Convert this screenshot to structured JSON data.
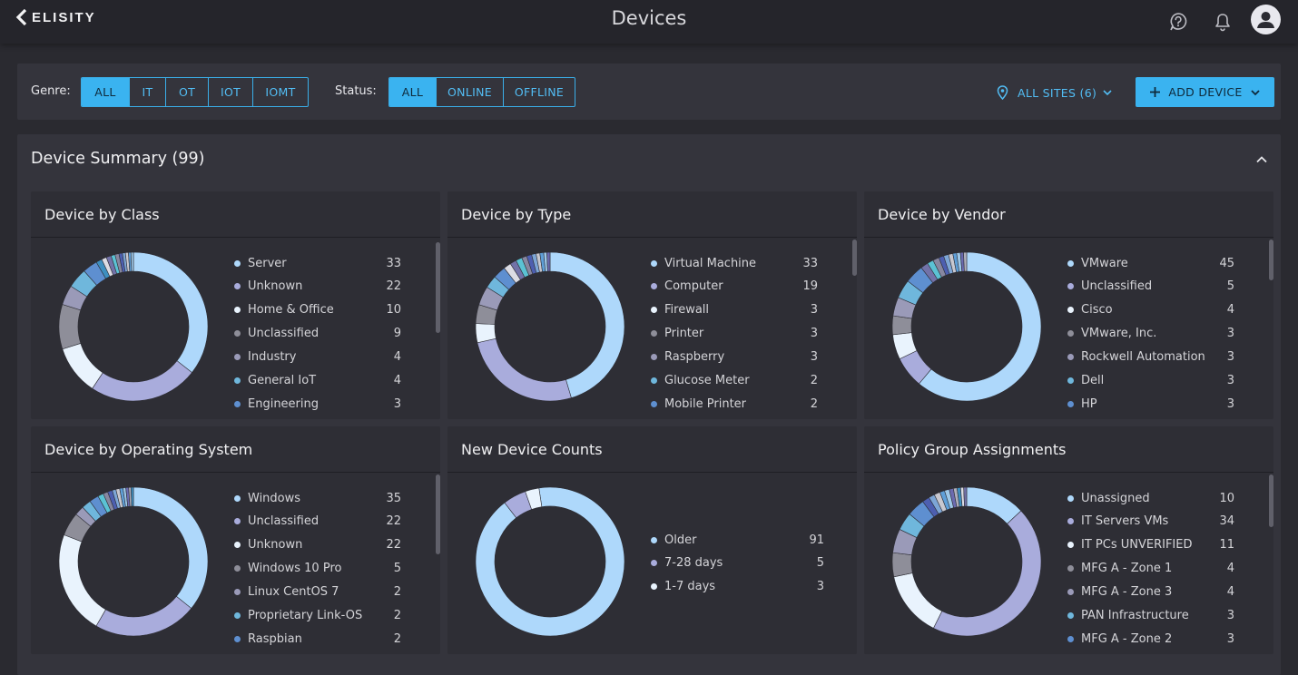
{
  "header": {
    "logo_text": "ELISITY",
    "title": "Devices"
  },
  "filters": {
    "genre_label": "Genre:",
    "genre_options": [
      "ALL",
      "IT",
      "OT",
      "IOT",
      "IOMT"
    ],
    "genre_selected": "ALL",
    "status_label": "Status:",
    "status_options": [
      "ALL",
      "ONLINE",
      "OFFLINE"
    ],
    "status_selected": "ALL",
    "sites_label": "ALL SITES (6)",
    "add_device_label": "ADD DEVICE"
  },
  "summary": {
    "title": "Device Summary (99)"
  },
  "colors": {
    "accent": "#3ab3f0",
    "primary_slice": "#aed8fb",
    "secondary_slice": "#a9acdc"
  },
  "cards": [
    {
      "title": "Device by Class",
      "items": [
        {
          "label": "Server",
          "value": "33",
          "color": "#aed8fb"
        },
        {
          "label": "Unknown",
          "value": "22",
          "color": "#a9acdc"
        },
        {
          "label": "Home & Office",
          "value": "10",
          "color": "#e9f3fd"
        },
        {
          "label": "Unclassified",
          "value": "9",
          "color": "#8e8e99"
        },
        {
          "label": "Industry",
          "value": "4",
          "color": "#9a9ab8"
        },
        {
          "label": "General IoT",
          "value": "4",
          "color": "#6fb7dc"
        },
        {
          "label": "Engineering",
          "value": "3",
          "color": "#5e8fd0"
        }
      ]
    },
    {
      "title": "Device by Type",
      "items": [
        {
          "label": "Virtual Machine",
          "value": "33",
          "color": "#aed8fb"
        },
        {
          "label": "Computer",
          "value": "19",
          "color": "#a9acdc"
        },
        {
          "label": "Firewall",
          "value": "3",
          "color": "#e9f3fd"
        },
        {
          "label": "Printer",
          "value": "3",
          "color": "#8e8e99"
        },
        {
          "label": "Raspberry",
          "value": "3",
          "color": "#9a9ab8"
        },
        {
          "label": "Glucose Meter",
          "value": "2",
          "color": "#6fb7dc"
        },
        {
          "label": "Mobile Printer",
          "value": "2",
          "color": "#5e8fd0"
        }
      ]
    },
    {
      "title": "Device by Vendor",
      "items": [
        {
          "label": "VMware",
          "value": "45",
          "color": "#aed8fb"
        },
        {
          "label": "Unclassified",
          "value": "5",
          "color": "#a9acdc"
        },
        {
          "label": "Cisco",
          "value": "4",
          "color": "#e9f3fd"
        },
        {
          "label": "VMware, Inc.",
          "value": "3",
          "color": "#8e8e99"
        },
        {
          "label": "Rockwell Automation",
          "value": "3",
          "color": "#9a9ab8"
        },
        {
          "label": "Dell",
          "value": "3",
          "color": "#6fb7dc"
        },
        {
          "label": "HP",
          "value": "3",
          "color": "#5e8fd0"
        }
      ]
    },
    {
      "title": "Device by Operating System",
      "items": [
        {
          "label": "Windows",
          "value": "35",
          "color": "#aed8fb"
        },
        {
          "label": "Unclassified",
          "value": "22",
          "color": "#a9acdc"
        },
        {
          "label": "Unknown",
          "value": "22",
          "color": "#e9f3fd"
        },
        {
          "label": "Windows 10 Pro",
          "value": "5",
          "color": "#8e8e99"
        },
        {
          "label": "Linux CentOS 7",
          "value": "2",
          "color": "#9a9ab8"
        },
        {
          "label": "Proprietary Link-OS",
          "value": "2",
          "color": "#6fb7dc"
        },
        {
          "label": "Raspbian",
          "value": "2",
          "color": "#5e8fd0"
        }
      ]
    },
    {
      "title": "New Device Counts",
      "items": [
        {
          "label": "Older",
          "value": "91",
          "color": "#aed8fb"
        },
        {
          "label": "7-28 days",
          "value": "5",
          "color": "#a9acdc"
        },
        {
          "label": "1-7 days",
          "value": "3",
          "color": "#e9f3fd"
        }
      ]
    },
    {
      "title": "Policy Group Assignments",
      "items": [
        {
          "label": "Unassigned",
          "value": "10",
          "color": "#aed8fb"
        },
        {
          "label": "IT Servers VMs",
          "value": "34",
          "color": "#a9acdc"
        },
        {
          "label": "IT PCs UNVERIFIED",
          "value": "11",
          "color": "#e9f3fd"
        },
        {
          "label": "MFG A - Zone 1",
          "value": "4",
          "color": "#8e8e99"
        },
        {
          "label": "MFG A - Zone 3",
          "value": "4",
          "color": "#9a9ab8"
        },
        {
          "label": "PAN Infrastructure",
          "value": "3",
          "color": "#6fb7dc"
        },
        {
          "label": "MFG A - Zone 2",
          "value": "3",
          "color": "#5e8fd0"
        }
      ]
    }
  ]
}
